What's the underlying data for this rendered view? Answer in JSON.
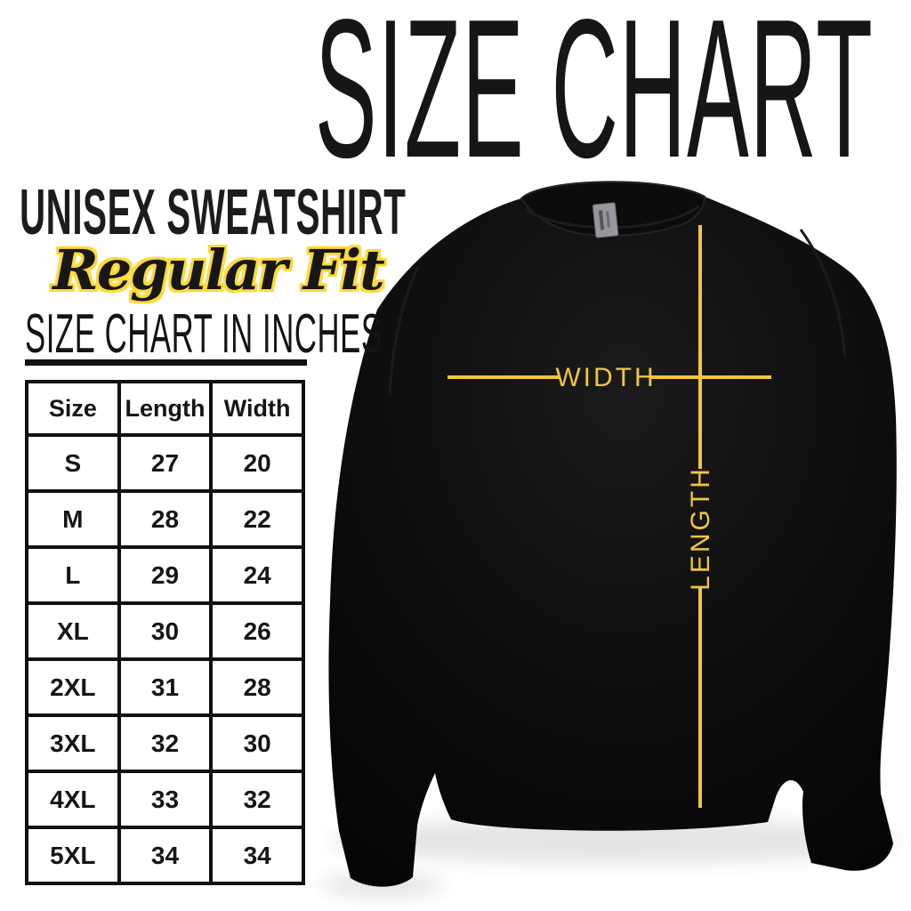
{
  "title": "SIZE CHART",
  "product": {
    "name": "UNISEX SWEATSHIRT",
    "fit": "Regular Fit"
  },
  "table_section": {
    "heading": "SIZE CHART IN INCHES"
  },
  "size_table": {
    "columns": [
      "Size",
      "Length",
      "Width"
    ],
    "rows": [
      [
        "S",
        "27",
        "20"
      ],
      [
        "M",
        "28",
        "22"
      ],
      [
        "L",
        "29",
        "24"
      ],
      [
        "XL",
        "30",
        "26"
      ],
      [
        "2XL",
        "31",
        "28"
      ],
      [
        "3XL",
        "32",
        "30"
      ],
      [
        "4XL",
        "33",
        "32"
      ],
      [
        "5XL",
        "34",
        "34"
      ]
    ]
  },
  "chart_data": {
    "type": "table",
    "title": "SIZE CHART IN INCHES",
    "columns": [
      "Size",
      "Length",
      "Width"
    ],
    "rows": [
      [
        "S",
        27,
        20
      ],
      [
        "M",
        28,
        22
      ],
      [
        "L",
        29,
        24
      ],
      [
        "XL",
        30,
        26
      ],
      [
        "2XL",
        31,
        28
      ],
      [
        "3XL",
        32,
        30
      ],
      [
        "4XL",
        33,
        32
      ],
      [
        "5XL",
        34,
        34
      ]
    ]
  },
  "diagram": {
    "width_label": "WIDTH",
    "length_label": "LENGTH",
    "annotation_color": "#F1C63C",
    "garment": "black crewneck sweatshirt",
    "neck_tag_color": "#97979D"
  },
  "colors": {
    "ink": "#141414",
    "script_outline_yellow": "#FFD93B",
    "background": "#FFFFFF"
  }
}
